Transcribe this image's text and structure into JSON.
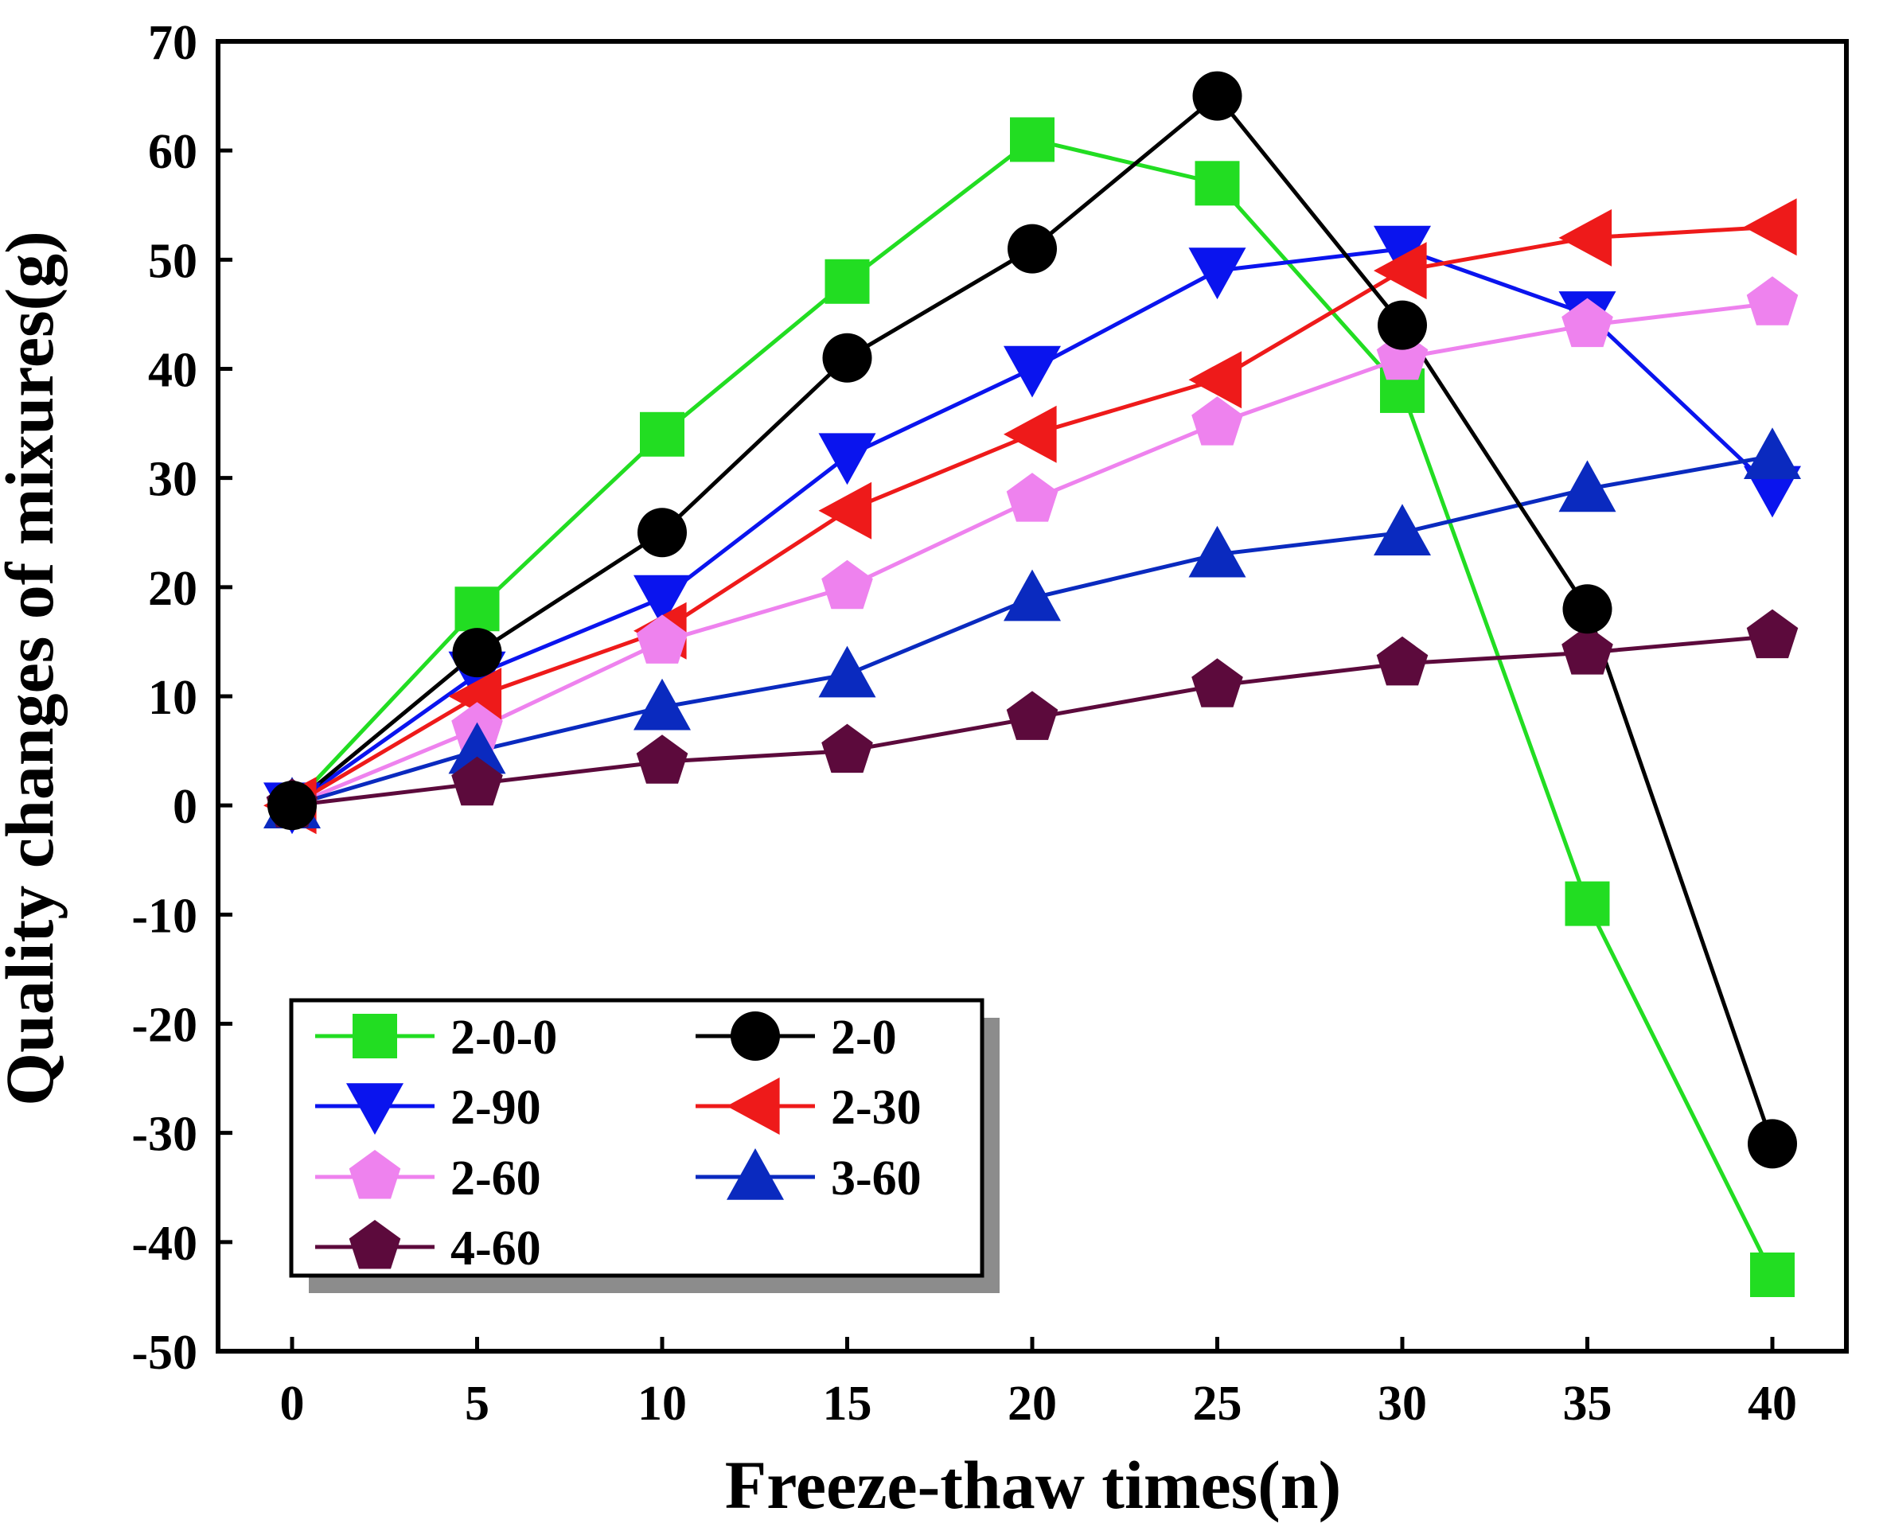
{
  "chart_data": {
    "type": "line",
    "title": "",
    "xlabel": "Freeze-thaw times(n)",
    "ylabel": "Quality changes of mixures(g)",
    "x": [
      0,
      5,
      10,
      15,
      20,
      25,
      30,
      35,
      40
    ],
    "xticks": [
      "0",
      "5",
      "10",
      "15",
      "20",
      "25",
      "30",
      "35",
      "40"
    ],
    "yticks": [
      "-50",
      "-40",
      "-30",
      "-20",
      "-10",
      "0",
      "10",
      "20",
      "30",
      "40",
      "50",
      "60",
      "70"
    ],
    "xlim": [
      -2,
      42
    ],
    "ylim": [
      -50,
      70
    ],
    "grid": false,
    "legend_position": "bottom-left",
    "series": [
      {
        "name": "2-0-0",
        "color": "#22dd22",
        "marker": "square",
        "values": [
          0,
          18,
          34,
          48,
          61,
          57,
          38,
          -9,
          -43
        ]
      },
      {
        "name": "2-0",
        "color": "#000000",
        "marker": "circle",
        "values": [
          0,
          14,
          25,
          41,
          51,
          65,
          44,
          18,
          -31
        ]
      },
      {
        "name": "2-90",
        "color": "#0a14ee",
        "marker": "triangle-down",
        "values": [
          0,
          12,
          19,
          32,
          40,
          49,
          51,
          45,
          29
        ]
      },
      {
        "name": "2-30",
        "color": "#ee1a1a",
        "marker": "triangle-left",
        "values": [
          0,
          10,
          16,
          27,
          34,
          39,
          49,
          52,
          53
        ]
      },
      {
        "name": "2-60",
        "color": "#ee82ee",
        "marker": "pentagon",
        "values": [
          0,
          7,
          15,
          20,
          28,
          35,
          41,
          44,
          46
        ]
      },
      {
        "name": "3-60",
        "color": "#0a2abf",
        "marker": "triangle-up",
        "values": [
          0,
          5,
          9,
          12,
          19,
          23,
          25,
          29,
          32
        ]
      },
      {
        "name": "4-60",
        "color": "#5c0a3c",
        "marker": "pentagon",
        "values": [
          0,
          2,
          4,
          5,
          8,
          11,
          13,
          14,
          15.5
        ]
      }
    ]
  }
}
